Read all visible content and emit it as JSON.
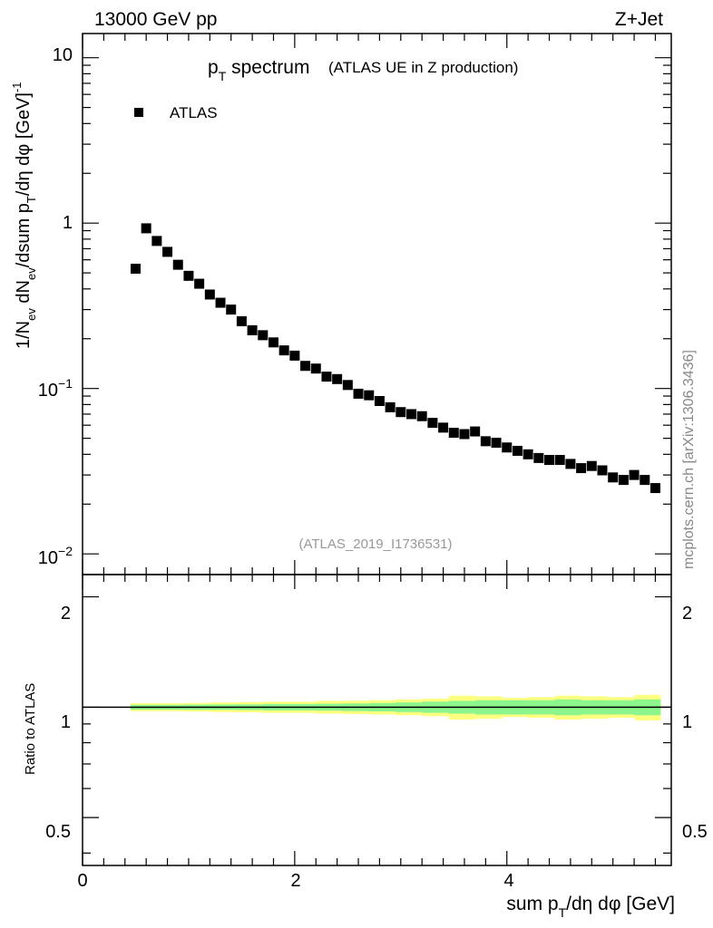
{
  "header": {
    "energy": "13000 GeV pp",
    "process": "Z+Jet"
  },
  "watermark": "mcplots.cern.ch [arXiv:1306.3436]",
  "analysis_id": "(ATLAS_2019_I1736531)",
  "colors": {
    "marker": "#000000",
    "band_inner": "#8cf58c",
    "band_outer": "#ffff80",
    "analysis_text": "#999999",
    "watermark_text": "#888888"
  },
  "chart_data": [
    {
      "type": "scatter",
      "title_main": "p",
      "title_sub": "T",
      "title_rest": " spectrum",
      "title_note": "(ATLAS UE in Z production)",
      "ylabel": "1/N_ev dN_ev/dsum p_T/dη dφ  [GeV]^-1",
      "ylabel_parts": {
        "a": "1/N",
        "a_sub": "ev",
        "b": " dN",
        "b_sub": "ev",
        "c": "/dsum p",
        "c_sub": "T",
        "d": "/dη dφ  [GeV]",
        "d_sup": "-1"
      },
      "yscale": "log",
      "ylim": [
        0.0075,
        14
      ],
      "xlim": [
        0,
        5.55
      ],
      "ytick_labels": [
        "10",
        "1",
        "10^-1",
        "10^-2"
      ],
      "legend": {
        "entry": "ATLAS",
        "position": "top-left"
      },
      "series": [
        {
          "name": "ATLAS",
          "x": [
            0.5,
            0.6,
            0.7,
            0.8,
            0.9,
            1.0,
            1.1,
            1.2,
            1.3,
            1.4,
            1.5,
            1.6,
            1.7,
            1.8,
            1.9,
            2.0,
            2.1,
            2.2,
            2.3,
            2.4,
            2.5,
            2.6,
            2.7,
            2.8,
            2.9,
            3.0,
            3.1,
            3.2,
            3.3,
            3.4,
            3.5,
            3.6,
            3.7,
            3.8,
            3.9,
            4.0,
            4.1,
            4.2,
            4.3,
            4.4,
            4.5,
            4.6,
            4.7,
            4.8,
            4.9,
            5.0,
            5.1,
            5.2,
            5.3,
            5.4
          ],
          "y": [
            0.53,
            0.93,
            0.78,
            0.67,
            0.56,
            0.48,
            0.43,
            0.37,
            0.33,
            0.3,
            0.255,
            0.225,
            0.21,
            0.19,
            0.17,
            0.158,
            0.137,
            0.132,
            0.118,
            0.114,
            0.105,
            0.093,
            0.091,
            0.084,
            0.077,
            0.072,
            0.07,
            0.068,
            0.062,
            0.058,
            0.054,
            0.053,
            0.055,
            0.048,
            0.047,
            0.044,
            0.042,
            0.04,
            0.038,
            0.037,
            0.037,
            0.035,
            0.033,
            0.034,
            0.032,
            0.029,
            0.028,
            0.03,
            0.028,
            0.025
          ]
        }
      ]
    },
    {
      "type": "area",
      "ylabel": "Ratio to ATLAS",
      "xlabel_main": "sum p",
      "xlabel_sub": "T",
      "xlabel_rest": "/dη dφ [GeV]",
      "xlim": [
        0,
        5.55
      ],
      "ylim": [
        0.37,
        2.3
      ],
      "ytick_labels": [
        "2",
        "1",
        "0.5"
      ],
      "xtick_labels": [
        "0",
        "2",
        "4"
      ],
      "reference_line": 1,
      "band_x": [
        0.45,
        5.45
      ],
      "band_inner_halfwidth": [
        0.015,
        0.015,
        0.016,
        0.017,
        0.018,
        0.02,
        0.02,
        0.022,
        0.024,
        0.026,
        0.03,
        0.035,
        0.04,
        0.045,
        0.045,
        0.045,
        0.05,
        0.045,
        0.045,
        0.05
      ],
      "band_outer_halfwidth": [
        0.025,
        0.025,
        0.027,
        0.03,
        0.032,
        0.035,
        0.035,
        0.04,
        0.042,
        0.045,
        0.05,
        0.055,
        0.075,
        0.07,
        0.06,
        0.065,
        0.075,
        0.07,
        0.065,
        0.08
      ]
    }
  ]
}
